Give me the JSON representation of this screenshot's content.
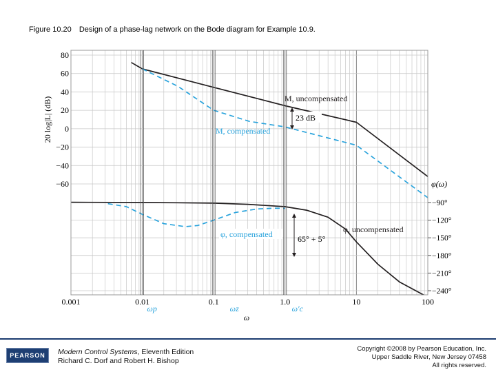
{
  "caption": {
    "figure_label": "Figure 10.20",
    "text": "Design of a phase-lag network on the Bode diagram for Example 10.9."
  },
  "chart_data": {
    "type": "line",
    "title": "Design of a phase-lag network on the Bode diagram for Example 10.9.",
    "xlabel": "ω",
    "xscale": "log",
    "xlim": [
      0.001,
      100
    ],
    "x_ticks": [
      "0.001",
      "0.01",
      "0.1",
      "1.0",
      "10",
      "100"
    ],
    "magnitude": {
      "ylabel": "20 log|L| (dB)",
      "ylim": [
        -60,
        80
      ],
      "y_ticks": [
        "80",
        "60",
        "40",
        "20",
        "0",
        "−20",
        "−40",
        "−60"
      ],
      "series": [
        {
          "name": "M, uncompensated",
          "style": "solid",
          "color": "#231f20",
          "x": [
            0.007,
            0.01,
            0.1,
            1,
            10,
            100
          ],
          "y": [
            72,
            65,
            45,
            25,
            7,
            -52
          ]
        },
        {
          "name": "M, compensated",
          "style": "dashed",
          "color": "#29a3dc",
          "x": [
            0.01,
            0.0316,
            0.1,
            0.316,
            1,
            10,
            100
          ],
          "y": [
            65,
            46,
            20,
            8,
            2,
            -18,
            -75
          ]
        }
      ]
    },
    "phase": {
      "ylabel": "φ(ω)",
      "ylim": [
        -240,
        -90
      ],
      "y_ticks": [
        "−90°",
        "−120°",
        "−150°",
        "−180°",
        "−210°",
        "−240°"
      ],
      "series": [
        {
          "name": "φ, uncompensated",
          "style": "solid",
          "color": "#231f20",
          "x": [
            0.001,
            0.01,
            0.03,
            0.1,
            0.3,
            1,
            2,
            4,
            7,
            10,
            20,
            40,
            100
          ],
          "y": [
            -89.5,
            -90,
            -90.3,
            -91,
            -93,
            -97,
            -103,
            -115,
            -135,
            -157,
            -195,
            -225,
            -251
          ]
        },
        {
          "name": "φ, compensated",
          "style": "dashed",
          "color": "#29a3dc",
          "x": [
            0.0033,
            0.006,
            0.01,
            0.02,
            0.04,
            0.06,
            0.1,
            0.2,
            0.4,
            0.7,
            1.0
          ],
          "y": [
            -92,
            -97,
            -110,
            -126,
            -131,
            -129,
            -120,
            -107,
            -101,
            -99.6,
            -100
          ]
        }
      ]
    },
    "markers": {
      "omega_p": "ωp",
      "omega_z": "ωz",
      "omega_c": "ω′c",
      "marker_x": [
        0.01,
        0.1,
        1.0
      ]
    },
    "annotations": {
      "gain_gap": "23 dB",
      "phase_margin": "65° + 5°",
      "m_uncomp": "M, uncompensated",
      "m_comp": "M, compensated",
      "phi_uncomp": "φ, uncompensated",
      "phi_comp": "φ, compensated",
      "phase_axis_label": "φ(ω)"
    }
  },
  "footer": {
    "logo": "PEARSON",
    "book_title": "Modern Control Systems",
    "book_edition": ", Eleventh Edition",
    "authors": "Richard C. Dorf and Robert H. Bishop",
    "copyright_line1": "Copyright ©2008 by Pearson Education, Inc.",
    "copyright_line2": "Upper Saddle River, New Jersey 07458",
    "copyright_line3": "All rights reserved."
  },
  "colors": {
    "compensated": "#29a3dc",
    "uncompensated": "#231f20",
    "grid": "#c8c8c8",
    "pearson_blue": "#1e3f73"
  }
}
